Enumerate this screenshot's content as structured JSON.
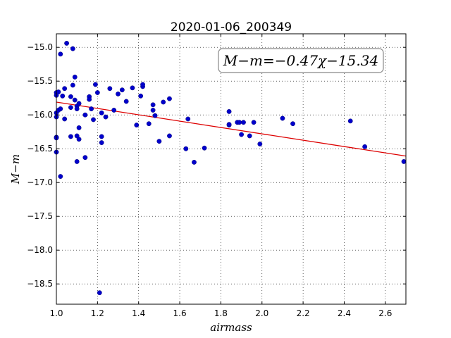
{
  "chart_data": {
    "type": "scatter",
    "title": "2020-01-06_200349",
    "xlabel": "airmass",
    "ylabel": "M−m",
    "xlim": [
      1.0,
      2.7
    ],
    "ylim": [
      -18.8,
      -14.8
    ],
    "y_inverted": true,
    "grid": true,
    "x_ticks": [
      1.0,
      1.2,
      1.4,
      1.6,
      1.8,
      2.0,
      2.2,
      2.4,
      2.6
    ],
    "x_tick_labels": [
      "1.0",
      "1.2",
      "1.4",
      "1.6",
      "1.8",
      "2.0",
      "2.2",
      "2.4",
      "2.6"
    ],
    "y_ticks": [
      -15.0,
      -15.5,
      -16.0,
      -16.5,
      -17.0,
      -17.5,
      -18.0,
      -18.5
    ],
    "y_tick_labels": [
      "−15.0",
      "−15.5",
      "−16.0",
      "−16.5",
      "−17.0",
      "−17.5",
      "−18.0",
      "−18.5"
    ],
    "annotation": "M−m=−0.47χ−15.34",
    "annotation_position": "top-right",
    "fit": {
      "slope": -0.47,
      "intercept": -15.34,
      "color": "#dd0000"
    },
    "marker_color": "#0000cc",
    "points": [
      [
        1.0,
        -15.67
      ],
      [
        1.0,
        -15.71
      ],
      [
        1.0,
        -15.97
      ],
      [
        1.0,
        -16.03
      ],
      [
        1.0,
        -16.33
      ],
      [
        1.0,
        -16.34
      ],
      [
        1.0,
        -16.55
      ],
      [
        1.01,
        -15.66
      ],
      [
        1.01,
        -15.93
      ],
      [
        1.02,
        -15.91
      ],
      [
        1.02,
        -15.1
      ],
      [
        1.02,
        -16.91
      ],
      [
        1.03,
        -15.72
      ],
      [
        1.04,
        -15.61
      ],
      [
        1.04,
        -16.06
      ],
      [
        1.05,
        -14.94
      ],
      [
        1.07,
        -15.73
      ],
      [
        1.07,
        -15.89
      ],
      [
        1.07,
        -16.32
      ],
      [
        1.08,
        -15.02
      ],
      [
        1.08,
        -15.56
      ],
      [
        1.09,
        -15.44
      ],
      [
        1.09,
        -15.78
      ],
      [
        1.1,
        -15.87
      ],
      [
        1.1,
        -15.91
      ],
      [
        1.1,
        -16.31
      ],
      [
        1.1,
        -16.69
      ],
      [
        1.11,
        -15.83
      ],
      [
        1.11,
        -16.36
      ],
      [
        1.11,
        -16.19
      ],
      [
        1.14,
        -16.0
      ],
      [
        1.14,
        -16.63
      ],
      [
        1.16,
        -15.73
      ],
      [
        1.16,
        -15.77
      ],
      [
        1.17,
        -15.91
      ],
      [
        1.18,
        -16.07
      ],
      [
        1.19,
        -15.55
      ],
      [
        1.2,
        -15.67
      ],
      [
        1.21,
        -18.63
      ],
      [
        1.22,
        -15.97
      ],
      [
        1.22,
        -16.41
      ],
      [
        1.22,
        -16.32
      ],
      [
        1.24,
        -16.03
      ],
      [
        1.26,
        -15.61
      ],
      [
        1.28,
        -15.93
      ],
      [
        1.3,
        -15.69
      ],
      [
        1.32,
        -15.63
      ],
      [
        1.34,
        -15.8
      ],
      [
        1.37,
        -15.6
      ],
      [
        1.39,
        -16.15
      ],
      [
        1.41,
        -15.72
      ],
      [
        1.42,
        -15.58
      ],
      [
        1.42,
        -15.55
      ],
      [
        1.45,
        -16.13
      ],
      [
        1.47,
        -15.85
      ],
      [
        1.47,
        -15.93
      ],
      [
        1.48,
        -16.01
      ],
      [
        1.5,
        -16.39
      ],
      [
        1.52,
        -15.81
      ],
      [
        1.55,
        -15.76
      ],
      [
        1.55,
        -16.31
      ],
      [
        1.63,
        -16.5
      ],
      [
        1.64,
        -16.06
      ],
      [
        1.67,
        -16.7
      ],
      [
        1.72,
        -16.49
      ],
      [
        1.84,
        -15.95
      ],
      [
        1.84,
        -16.15
      ],
      [
        1.84,
        -16.14
      ],
      [
        1.88,
        -16.11
      ],
      [
        1.89,
        -16.11
      ],
      [
        1.9,
        -16.29
      ],
      [
        1.91,
        -16.11
      ],
      [
        1.94,
        -16.31
      ],
      [
        1.96,
        -16.11
      ],
      [
        1.99,
        -16.43
      ],
      [
        2.1,
        -16.05
      ],
      [
        2.15,
        -16.13
      ],
      [
        2.43,
        -16.09
      ],
      [
        2.5,
        -16.47
      ],
      [
        2.69,
        -16.69
      ]
    ]
  }
}
